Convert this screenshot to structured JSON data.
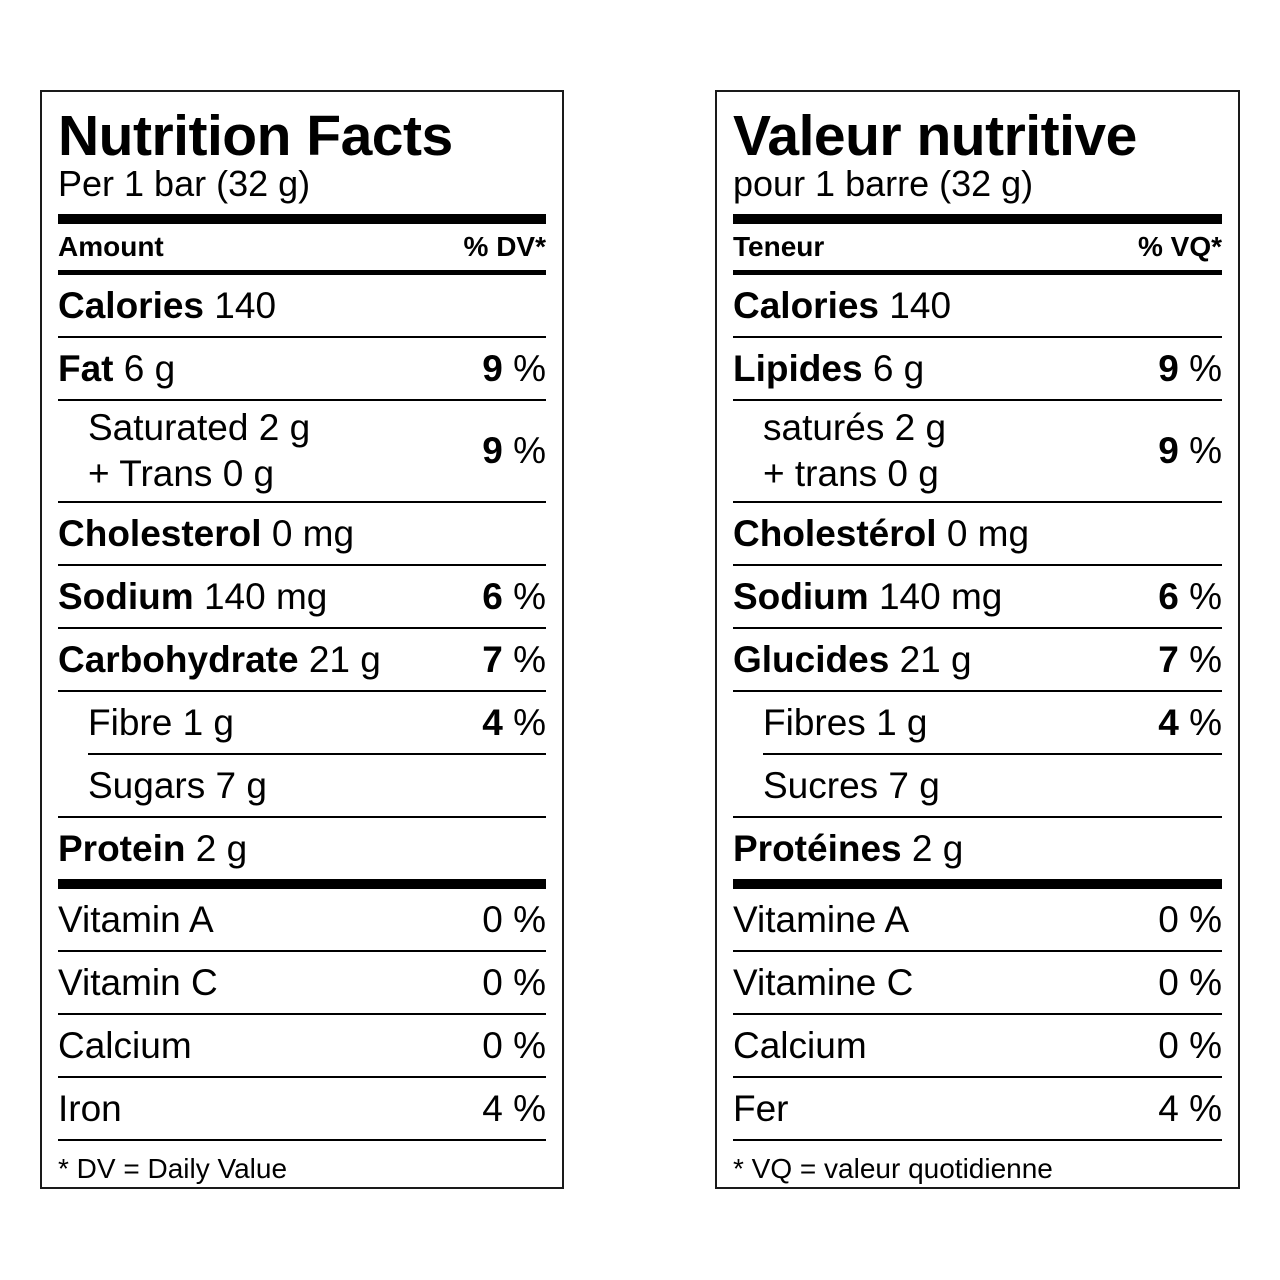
{
  "panels": {
    "en": {
      "title": "Nutrition Facts",
      "serving": "Per 1 bar (32 g)",
      "amount_header": "Amount",
      "dv_header": "% DV*",
      "calories": {
        "label": "Calories",
        "value": "140"
      },
      "fat": {
        "label": "Fat",
        "value": "6 g",
        "pct_num": "9",
        "pct_sign": " %"
      },
      "saturated": {
        "line1": "Saturated 2 g",
        "line2": "+ Trans 0 g",
        "pct_num": "9",
        "pct_sign": " %"
      },
      "cholesterol": {
        "label": "Cholesterol",
        "value": "0 mg"
      },
      "sodium": {
        "label": "Sodium",
        "value": "140 mg",
        "pct_num": "6",
        "pct_sign": " %"
      },
      "carbohydrate": {
        "label": "Carbohydrate",
        "value": "21 g",
        "pct_num": "7",
        "pct_sign": " %"
      },
      "fibre": {
        "label": "Fibre 1 g",
        "pct_num": "4",
        "pct_sign": " %"
      },
      "sugars": {
        "label": "Sugars 7 g"
      },
      "protein": {
        "label": "Protein",
        "value": "2 g"
      },
      "vitamins": [
        {
          "label": "Vitamin A",
          "pct": "0 %"
        },
        {
          "label": "Vitamin C",
          "pct": "0 %"
        },
        {
          "label": "Calcium",
          "pct": "0 %"
        },
        {
          "label": "Iron",
          "pct": "4 %"
        }
      ],
      "footnote": "* DV = Daily Value"
    },
    "fr": {
      "title": "Valeur nutritive",
      "serving": "pour 1 barre (32 g)",
      "amount_header": "Teneur",
      "dv_header": "% VQ*",
      "calories": {
        "label": "Calories",
        "value": "140"
      },
      "fat": {
        "label": "Lipides",
        "value": "6 g",
        "pct_num": "9",
        "pct_sign": " %"
      },
      "saturated": {
        "line1": "saturés 2 g",
        "line2": "+ trans 0 g",
        "pct_num": "9",
        "pct_sign": " %"
      },
      "cholesterol": {
        "label": "Cholestérol",
        "value": "0 mg"
      },
      "sodium": {
        "label": "Sodium",
        "value": "140 mg",
        "pct_num": "6",
        "pct_sign": " %"
      },
      "carbohydrate": {
        "label": "Glucides",
        "value": "21 g",
        "pct_num": "7",
        "pct_sign": " %"
      },
      "fibre": {
        "label": "Fibres 1 g",
        "pct_num": "4",
        "pct_sign": " %"
      },
      "sugars": {
        "label": "Sucres 7 g"
      },
      "protein": {
        "label": "Protéines",
        "value": "2 g"
      },
      "vitamins": [
        {
          "label": "Vitamine A",
          "pct": "0 %"
        },
        {
          "label": "Vitamine C",
          "pct": "0 %"
        },
        {
          "label": "Calcium",
          "pct": "0 %"
        },
        {
          "label": "Fer",
          "pct": "4 %"
        }
      ],
      "footnote": "* VQ = valeur quotidienne"
    }
  }
}
